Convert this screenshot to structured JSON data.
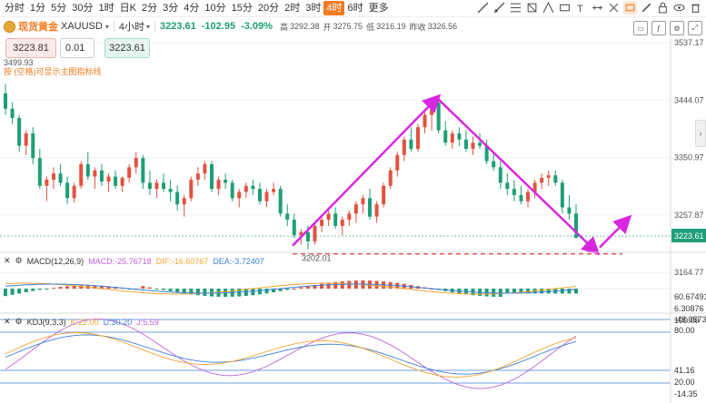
{
  "timeframes": [
    {
      "label": "分时",
      "active": false
    },
    {
      "label": "1分",
      "active": false
    },
    {
      "label": "5分",
      "active": false
    },
    {
      "label": "30分",
      "active": false
    },
    {
      "label": "1时",
      "active": false
    },
    {
      "label": "日K",
      "active": false
    },
    {
      "label": "2分",
      "active": false
    },
    {
      "label": "3分",
      "active": false
    },
    {
      "label": "4分",
      "active": false
    },
    {
      "label": "10分",
      "active": false
    },
    {
      "label": "15分",
      "active": false
    },
    {
      "label": "20分",
      "active": false
    },
    {
      "label": "2时",
      "active": false
    },
    {
      "label": "3时",
      "active": false
    },
    {
      "label": "4时",
      "active": true
    },
    {
      "label": "6时",
      "active": false
    },
    {
      "label": "更多",
      "active": false
    }
  ],
  "quote": {
    "name": "现货黄金",
    "symbol": "XAUUSD",
    "period": "4小时",
    "price": "3223.61",
    "change": "-102.95",
    "change_pct": "-3.09%",
    "high_label": "高",
    "high": "3292.38",
    "open_label": "开",
    "open": "3275.75",
    "low_label": "低",
    "low": "3216.19",
    "prev_label": "昨收",
    "prev": "3326.56"
  },
  "order": {
    "sell": "3223.81",
    "lot": "0.01",
    "buy": "3223.61"
  },
  "hint": "按 (空格)可显示主图指标线",
  "prev_low_label": "3499.93",
  "main_axis": [
    "3537.17",
    "3444.07",
    "3350.97",
    "3257.87",
    "3164.77"
  ],
  "current_price_tag": "3223.61",
  "low_marker": "3202.01",
  "macd": {
    "title": "MACD(12,26,9)",
    "macd": "MACD:-25.76718",
    "dif": "DIF:-16.60767",
    "dea": "DEA:-3.72407",
    "axis": [
      "60.67491",
      "6.30876",
      "-48.05738"
    ]
  },
  "kdj": {
    "title": "KDJ(9,3,3)",
    "k": "K:22.00",
    "d": "D:30.20",
    "j": "J:5.59",
    "axis": [
      "100.00",
      "80.00",
      "41.16",
      "20.00",
      "-14.35"
    ]
  },
  "colors": {
    "up": "#1e9e78",
    "down": "#e15241",
    "accent": "#f47b20",
    "arrow": "#d926e0",
    "dashed": "#e15241"
  },
  "candles": [
    [
      3455,
      3470,
      3420,
      3430
    ],
    [
      3430,
      3440,
      3405,
      3415
    ],
    [
      3415,
      3420,
      3360,
      3370
    ],
    [
      3370,
      3395,
      3355,
      3390
    ],
    [
      3390,
      3400,
      3340,
      3350
    ],
    [
      3350,
      3365,
      3300,
      3305
    ],
    [
      3305,
      3320,
      3280,
      3315
    ],
    [
      3315,
      3335,
      3300,
      3325
    ],
    [
      3325,
      3340,
      3305,
      3310
    ],
    [
      3310,
      3320,
      3275,
      3285
    ],
    [
      3285,
      3310,
      3278,
      3305
    ],
    [
      3305,
      3345,
      3300,
      3340
    ],
    [
      3340,
      3360,
      3315,
      3320
    ],
    [
      3320,
      3335,
      3300,
      3330
    ],
    [
      3330,
      3340,
      3305,
      3312
    ],
    [
      3312,
      3325,
      3295,
      3320
    ],
    [
      3320,
      3330,
      3300,
      3305
    ],
    [
      3305,
      3320,
      3295,
      3318
    ],
    [
      3318,
      3340,
      3310,
      3335
    ],
    [
      3335,
      3360,
      3325,
      3350
    ],
    [
      3350,
      3355,
      3300,
      3310
    ],
    [
      3310,
      3330,
      3290,
      3300
    ],
    [
      3300,
      3315,
      3285,
      3310
    ],
    [
      3310,
      3325,
      3295,
      3300
    ],
    [
      3300,
      3315,
      3280,
      3295
    ],
    [
      3295,
      3305,
      3265,
      3275
    ],
    [
      3275,
      3290,
      3255,
      3285
    ],
    [
      3285,
      3320,
      3280,
      3315
    ],
    [
      3315,
      3335,
      3305,
      3325
    ],
    [
      3325,
      3345,
      3315,
      3340
    ],
    [
      3340,
      3345,
      3295,
      3300
    ],
    [
      3300,
      3320,
      3290,
      3315
    ],
    [
      3315,
      3325,
      3300,
      3310
    ],
    [
      3310,
      3315,
      3280,
      3285
    ],
    [
      3285,
      3300,
      3270,
      3295
    ],
    [
      3295,
      3310,
      3285,
      3305
    ],
    [
      3305,
      3315,
      3290,
      3300
    ],
    [
      3300,
      3310,
      3275,
      3280
    ],
    [
      3280,
      3300,
      3270,
      3295
    ],
    [
      3295,
      3310,
      3290,
      3300
    ],
    [
      3300,
      3305,
      3255,
      3260
    ],
    [
      3260,
      3275,
      3240,
      3250
    ],
    [
      3250,
      3260,
      3220,
      3225
    ],
    [
      3225,
      3235,
      3210,
      3230
    ],
    [
      3230,
      3240,
      3202,
      3215
    ],
    [
      3215,
      3245,
      3210,
      3240
    ],
    [
      3240,
      3255,
      3230,
      3250
    ],
    [
      3250,
      3265,
      3240,
      3260
    ],
    [
      3260,
      3270,
      3235,
      3240
    ],
    [
      3240,
      3255,
      3225,
      3250
    ],
    [
      3250,
      3265,
      3240,
      3260
    ],
    [
      3260,
      3280,
      3245,
      3275
    ],
    [
      3275,
      3290,
      3260,
      3285
    ],
    [
      3285,
      3300,
      3250,
      3255
    ],
    [
      3255,
      3280,
      3245,
      3275
    ],
    [
      3275,
      3310,
      3270,
      3305
    ],
    [
      3305,
      3335,
      3300,
      3330
    ],
    [
      3330,
      3360,
      3320,
      3355
    ],
    [
      3355,
      3385,
      3345,
      3380
    ],
    [
      3380,
      3400,
      3360,
      3365
    ],
    [
      3365,
      3405,
      3360,
      3400
    ],
    [
      3400,
      3425,
      3390,
      3420
    ],
    [
      3420,
      3446,
      3395,
      3440
    ],
    [
      3440,
      3446,
      3390,
      3395
    ],
    [
      3395,
      3410,
      3370,
      3375
    ],
    [
      3375,
      3395,
      3365,
      3390
    ],
    [
      3390,
      3400,
      3370,
      3380
    ],
    [
      3380,
      3395,
      3360,
      3365
    ],
    [
      3365,
      3385,
      3355,
      3375
    ],
    [
      3375,
      3390,
      3365,
      3370
    ],
    [
      3370,
      3380,
      3340,
      3345
    ],
    [
      3345,
      3360,
      3330,
      3335
    ],
    [
      3335,
      3345,
      3300,
      3310
    ],
    [
      3310,
      3325,
      3290,
      3300
    ],
    [
      3300,
      3315,
      3280,
      3290
    ],
    [
      3290,
      3305,
      3275,
      3280
    ],
    [
      3280,
      3300,
      3270,
      3295
    ],
    [
      3295,
      3315,
      3285,
      3310
    ],
    [
      3310,
      3325,
      3300,
      3318
    ],
    [
      3318,
      3330,
      3305,
      3322
    ],
    [
      3322,
      3330,
      3305,
      3310
    ],
    [
      3310,
      3315,
      3260,
      3270
    ],
    [
      3270,
      3290,
      3250,
      3260
    ],
    [
      3260,
      3275,
      3225,
      3228
    ]
  ]
}
